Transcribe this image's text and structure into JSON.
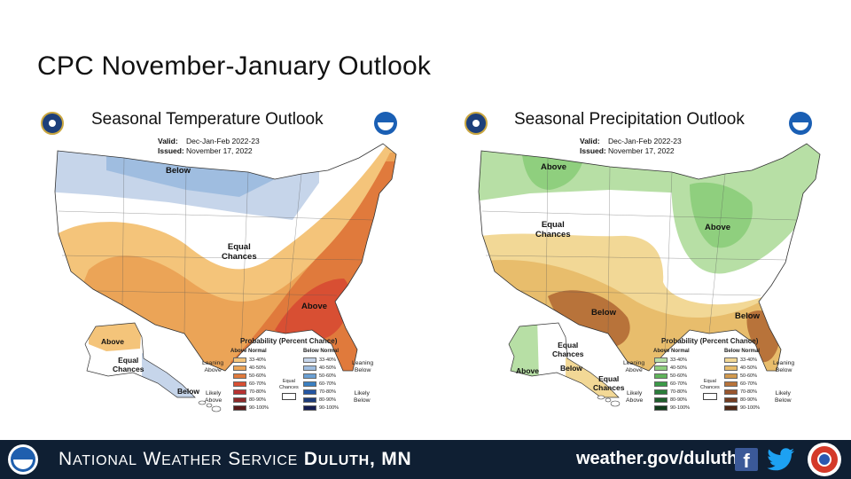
{
  "slide": {
    "title": "CPC November-January Outlook"
  },
  "temperature_panel": {
    "title": "Seasonal Temperature Outlook",
    "valid_label": "Valid:",
    "valid_value": "Dec-Jan-Feb 2022-23",
    "issued_label": "Issued:",
    "issued_value": "November 17, 2022",
    "labels": {
      "below_north": "Below",
      "equal_chances_line1": "Equal",
      "equal_chances_line2": "Chances",
      "above_south": "Above",
      "ak_above": "Above",
      "ak_equal_line1": "Equal",
      "ak_equal_line2": "Chances",
      "ak_below": "Below"
    },
    "legend": {
      "title": "Probability (Percent Chance)",
      "above_head": "Above Normal",
      "below_head": "Below Normal",
      "ranges": [
        "33-40%",
        "40-50%",
        "50-60%",
        "60-70%",
        "70-80%",
        "80-90%",
        "90-100%"
      ],
      "above_colors": [
        "#f4c47a",
        "#eba457",
        "#e07a3c",
        "#d84f33",
        "#b83232",
        "#8e2a2a",
        "#5a1a1a"
      ],
      "below_colors": [
        "#c6d5ea",
        "#9fbde0",
        "#6aa0d4",
        "#3b7fc1",
        "#2456a3",
        "#1d3c7a",
        "#161e52"
      ],
      "leaning_above_1": "Leaning",
      "leaning_above_2": "Above",
      "likely_above_1": "Likely",
      "likely_above_2": "Above",
      "equal_1": "Equal",
      "equal_2": "Chances",
      "leaning_below_1": "Leaning",
      "leaning_below_2": "Below",
      "likely_below_1": "Likely",
      "likely_below_2": "Below"
    }
  },
  "precipitation_panel": {
    "title": "Seasonal Precipitation Outlook",
    "valid_label": "Valid:",
    "valid_value": "Dec-Jan-Feb 2022-23",
    "issued_label": "Issued:",
    "issued_value": "November 17, 2022",
    "labels": {
      "above_nw": "Above",
      "equal_chances_line1": "Equal",
      "equal_chances_line2": "Chances",
      "above_great_lakes": "Above",
      "below_sw": "Below",
      "below_se": "Below",
      "ak_equal_line1": "Equal",
      "ak_equal_line2": "Chances",
      "ak_above": "Above",
      "ak_below": "Below",
      "hi_equal_line1": "Equal",
      "hi_equal_line2": "Chances"
    },
    "legend": {
      "title": "Probability (Percent Chance)",
      "above_head": "Above Normal",
      "below_head": "Below Normal",
      "ranges": [
        "33-40%",
        "40-50%",
        "50-60%",
        "60-70%",
        "70-80%",
        "80-90%",
        "90-100%"
      ],
      "above_colors": [
        "#b7dfa5",
        "#8fcf7e",
        "#5fb45a",
        "#3b9a47",
        "#2a7d3a",
        "#1f5e2c",
        "#123d1c"
      ],
      "below_colors": [
        "#f2d896",
        "#e8bd6c",
        "#d39a4e",
        "#b8733a",
        "#98552d",
        "#743d22",
        "#4f2816"
      ],
      "leaning_above_1": "Leaning",
      "leaning_above_2": "Above",
      "likely_above_1": "Likely",
      "likely_above_2": "Above",
      "equal_1": "Equal",
      "equal_2": "Chances",
      "leaning_below_1": "Leaning",
      "leaning_below_2": "Below",
      "likely_below_1": "Likely",
      "likely_below_2": "Below"
    }
  },
  "footer": {
    "agency_n": "N",
    "agency_ational": "ATIONAL",
    "agency_w": "W",
    "agency_eather": "EATHER",
    "agency_s": "S",
    "agency_ervice": "ERVICE",
    "office_d": "D",
    "office_uluth": "ULUTH",
    "office_state": ", MN",
    "url": "weather.gov/duluth",
    "facebook_glyph": "f"
  },
  "icons": {
    "doc_seal": "commerce-seal-icon",
    "noaa": "noaa-logo-icon",
    "facebook": "facebook-icon",
    "twitter": "twitter-icon",
    "nws": "nws-logo-icon"
  }
}
